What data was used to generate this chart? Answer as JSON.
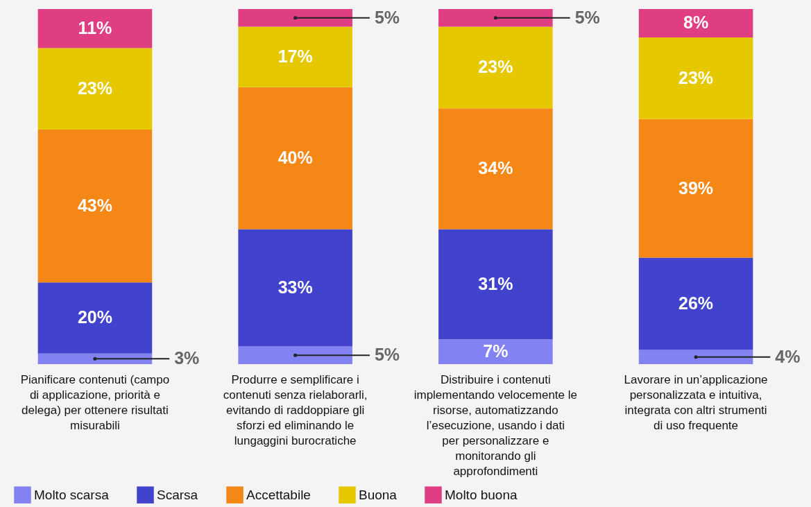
{
  "chart_data": {
    "type": "bar",
    "stacked": true,
    "legend": "bottom",
    "categories": [
      "Pianificare contenuti (campo di applicazione, priorità e delega) per ottenere risultati misurabili",
      "Produrre e semplificare i contenuti senza rielaborarli, evitando di raddoppiare gli sforzi ed eliminando le lungaggini burocratiche",
      "Distribuire i contenuti implementando velocemente le risorse, automatizzando l’esecuzione, usando i dati per personalizzare e monitorando gli approfondimenti",
      "Lavorare in un’applicazione personalizzata e intuitiva, integrata con altri strumenti di uso frequente"
    ],
    "series": [
      {
        "name": "Molto scarsa",
        "color": "#8282f2",
        "values": [
          3,
          5,
          7,
          4
        ],
        "value_labels": [
          "3%",
          "5%",
          "7%",
          "4%"
        ]
      },
      {
        "name": "Scarsa",
        "color": "#4143cc",
        "values": [
          20,
          33,
          31,
          26
        ],
        "value_labels": [
          "20%",
          "33%",
          "31%",
          "26%"
        ]
      },
      {
        "name": "Accettabile",
        "color": "#f58716",
        "values": [
          43,
          40,
          34,
          39
        ],
        "value_labels": [
          "43%",
          "40%",
          "34%",
          "39%"
        ]
      },
      {
        "name": "Buona",
        "color": "#e6c800",
        "values": [
          23,
          17,
          23,
          23
        ],
        "value_labels": [
          "23%",
          "17%",
          "23%",
          "23%"
        ]
      },
      {
        "name": "Molto buona",
        "color": "#e03e82",
        "values": [
          11,
          5,
          5,
          8
        ],
        "value_labels": [
          "11%",
          "5%",
          "5%",
          "8%"
        ]
      }
    ]
  }
}
